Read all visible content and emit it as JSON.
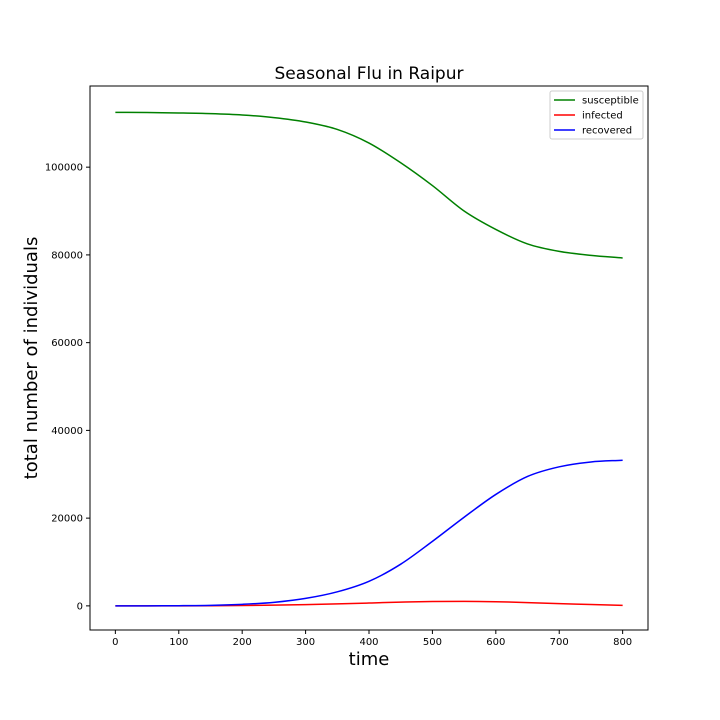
{
  "chart_data": {
    "type": "line",
    "title": "Seasonal Flu in Raipur",
    "xlabel": "time",
    "ylabel": "total number of individuals",
    "xlim": [
      -40,
      840
    ],
    "ylim": [
      -5500,
      118500
    ],
    "xticks": [
      0,
      100,
      200,
      300,
      400,
      500,
      600,
      700,
      800
    ],
    "yticks": [
      0,
      20000,
      40000,
      60000,
      80000,
      100000
    ],
    "legend_position": "top-right",
    "grid": false,
    "x": [
      0,
      50,
      100,
      150,
      200,
      250,
      300,
      350,
      400,
      450,
      500,
      550,
      600,
      650,
      700,
      750,
      800
    ],
    "series": [
      {
        "name": "susceptible",
        "color": "#008000",
        "values": [
          112500,
          112450,
          112350,
          112200,
          111900,
          111300,
          110300,
          108600,
          105500,
          101000,
          95800,
          90000,
          85800,
          82500,
          80800,
          79900,
          79300
        ]
      },
      {
        "name": "infected",
        "color": "#ff0000",
        "values": [
          0,
          3,
          10,
          30,
          80,
          160,
          280,
          450,
          650,
          850,
          1000,
          1030,
          950,
          750,
          500,
          300,
          100
        ]
      },
      {
        "name": "recovered",
        "color": "#0000ff",
        "values": [
          0,
          10,
          40,
          120,
          350,
          800,
          1700,
          3200,
          5600,
          9500,
          14700,
          20200,
          25400,
          29500,
          31700,
          32800,
          33200
        ]
      }
    ]
  }
}
